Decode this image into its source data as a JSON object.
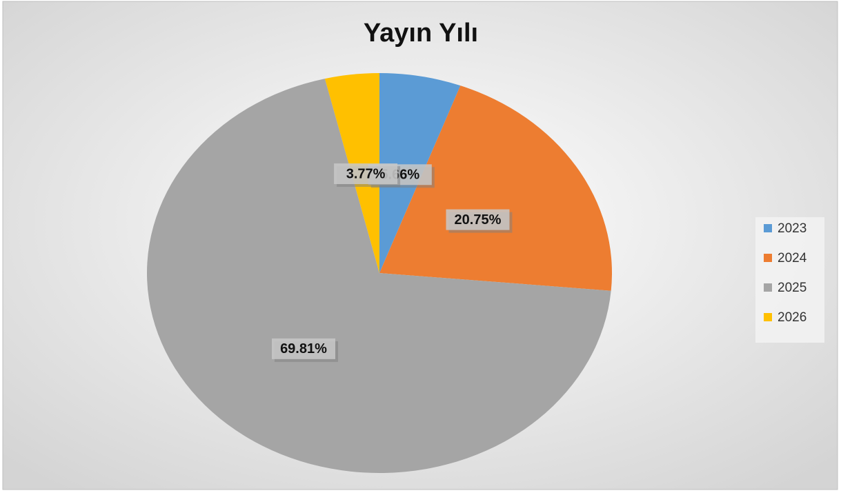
{
  "chart_data": {
    "type": "pie",
    "title": "Yayın Yılı",
    "categories": [
      "2023",
      "2024",
      "2025",
      "2026"
    ],
    "values": [
      5.66,
      20.75,
      69.81,
      3.77
    ],
    "value_labels": [
      "5.66%",
      "20.75%",
      "69.81%",
      "3.77%"
    ],
    "colors": [
      "#5b9bd5",
      "#ed7d31",
      "#a5a5a5",
      "#ffc000"
    ],
    "legend": "right"
  }
}
